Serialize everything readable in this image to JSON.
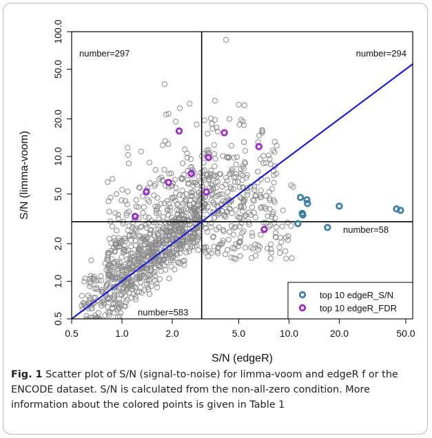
{
  "chart_data": {
    "type": "scatter",
    "xlabel": "S/N (edgeR)",
    "ylabel": "S/N (limma-voom)",
    "x_scale": "log",
    "y_scale": "log",
    "xlim": [
      0.5,
      55
    ],
    "ylim": [
      0.5,
      100
    ],
    "x_ticks": [
      "0.5",
      "1.0",
      "2.0",
      "5.0",
      "10.0",
      "20.0",
      "50.0"
    ],
    "y_ticks": [
      "0.5",
      "1.0",
      "2.0",
      "5.0",
      "10.0",
      "20.0",
      "50.0",
      "100.0"
    ],
    "threshold_x": 3.0,
    "threshold_y": 3.0,
    "diagonal": {
      "slope": 1,
      "intercept": 0,
      "color": "#1a1adb"
    },
    "quadrant_labels": {
      "top_left": "number=297",
      "top_right": "number=294",
      "bottom_right": "number=58",
      "bottom_left": "number=583"
    },
    "legend": {
      "position": "bottom-right",
      "entries": [
        {
          "label": "top 10 edgeR_S/N",
          "color": "#3a7fa8"
        },
        {
          "label": "top 10 edgeR_FDR",
          "color": "#9c27d0"
        }
      ]
    },
    "grey_color": "#8a8a8a",
    "series_edger_sn": [
      [
        11.3,
        2.9
      ],
      [
        11.7,
        4.7
      ],
      [
        12.0,
        3.5
      ],
      [
        12.8,
        4.5
      ],
      [
        12.9,
        4.2
      ],
      [
        17.0,
        2.7
      ],
      [
        20.0,
        4.0
      ],
      [
        44.0,
        3.8
      ],
      [
        46.5,
        3.7
      ],
      [
        12.1,
        3.4
      ]
    ],
    "series_edger_fdr": [
      [
        1.2,
        3.3
      ],
      [
        1.4,
        5.2
      ],
      [
        1.9,
        6.2
      ],
      [
        2.2,
        16.0
      ],
      [
        2.6,
        7.3
      ],
      [
        3.2,
        5.2
      ],
      [
        3.3,
        9.8
      ],
      [
        4.1,
        15.5
      ],
      [
        6.6,
        12.0
      ],
      [
        7.1,
        2.6
      ]
    ]
  },
  "caption": {
    "figure_label": "Fig. 1",
    "text": "Scatter plot of S/N (signal-to-noise) for limma-voom and edgeR f or the ENCODE dataset. S/N is calculated from the non-all-zero condition. More information about the colored points is given in Table 1"
  }
}
